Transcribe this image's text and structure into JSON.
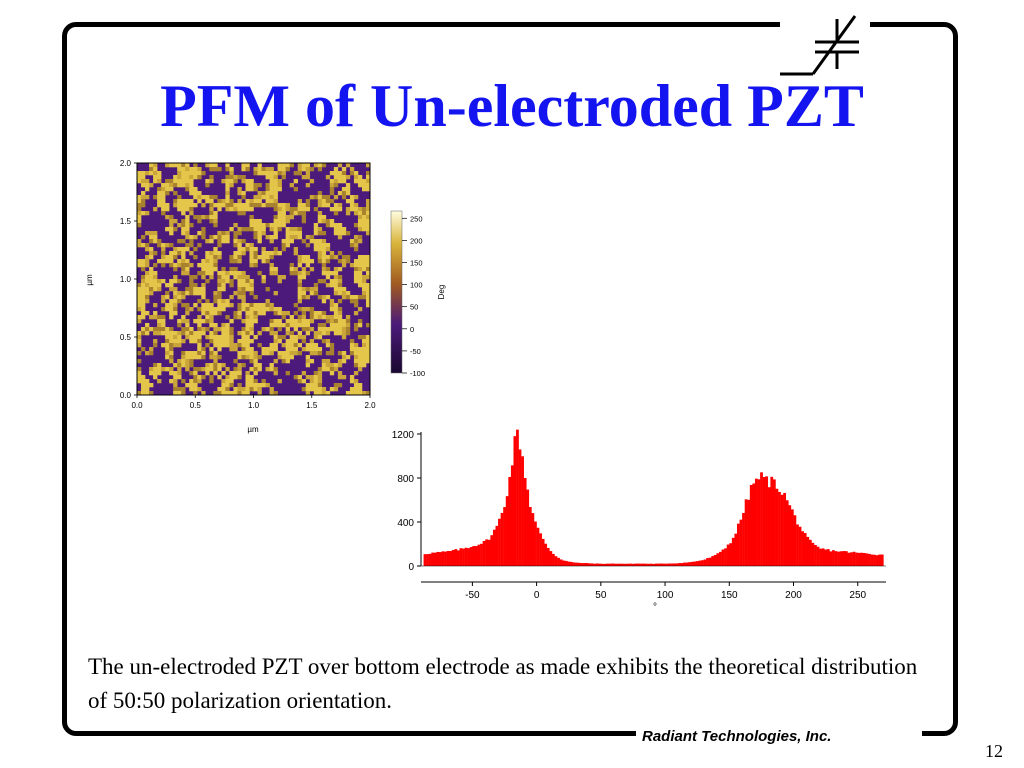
{
  "slide": {
    "title": "PFM of Un-electroded PZT",
    "body": "The un-electroded PZT over bottom electrode as made exhibits the theoretical distribution of 50:50 polarization orientation.",
    "company": "Radiant Technologies, Inc.",
    "page_number": "12",
    "title_color": "#1414f0",
    "logo_icon": "ferroelectric-capacitor-symbol-icon"
  },
  "chart_data": [
    {
      "type": "heatmap",
      "xlabel": "µm",
      "ylabel": "µm",
      "xlim": [
        0.0,
        2.0
      ],
      "ylim": [
        0.0,
        2.0
      ],
      "x_ticks": [
        "0.0",
        "0.5",
        "1.0",
        "1.5",
        "2.0"
      ],
      "y_ticks": [
        "0.0",
        "0.5",
        "1.0",
        "1.5",
        "2.0"
      ],
      "colorbar": {
        "label": "Deg",
        "range": [
          -100,
          250
        ],
        "ticks": [
          "250",
          "200",
          "150",
          "100",
          "50",
          "0",
          "-50",
          "-100"
        ],
        "colors": [
          "#1a0830",
          "#4b1a7a",
          "#a05a20",
          "#d9b43c",
          "#fffde0"
        ]
      }
    },
    {
      "type": "bar",
      "xlabel": "°",
      "ylabel": "",
      "xlim": [
        -90,
        272
      ],
      "ylim": [
        0,
        1200
      ],
      "x_ticks": [
        "-50",
        "0",
        "50",
        "100",
        "150",
        "200",
        "250"
      ],
      "y_ticks": [
        "0",
        "400",
        "800",
        "1200"
      ],
      "color": "#ff0000",
      "series": [
        {
          "x": [
            -88,
            -80,
            -70,
            -60,
            -50,
            -40,
            -35,
            -30,
            -25,
            -20,
            -18,
            -15,
            -12,
            -10,
            -5,
            0,
            5,
            10,
            15,
            20,
            25,
            30,
            40,
            50,
            60,
            70,
            80,
            90,
            100,
            110,
            120,
            130,
            140,
            150,
            155,
            160,
            165,
            170,
            175,
            180,
            185,
            190,
            195,
            200,
            205,
            210,
            215,
            220,
            230,
            240,
            250,
            260,
            270
          ],
          "values": [
            110,
            120,
            130,
            150,
            180,
            220,
            280,
            380,
            560,
            850,
            1080,
            1200,
            1080,
            900,
            560,
            360,
            240,
            150,
            90,
            55,
            40,
            30,
            25,
            20,
            22,
            20,
            22,
            20,
            22,
            25,
            35,
            55,
            100,
            200,
            300,
            460,
            640,
            780,
            810,
            770,
            760,
            700,
            600,
            470,
            360,
            260,
            200,
            160,
            140,
            130,
            120,
            110,
            100
          ]
        }
      ]
    }
  ]
}
